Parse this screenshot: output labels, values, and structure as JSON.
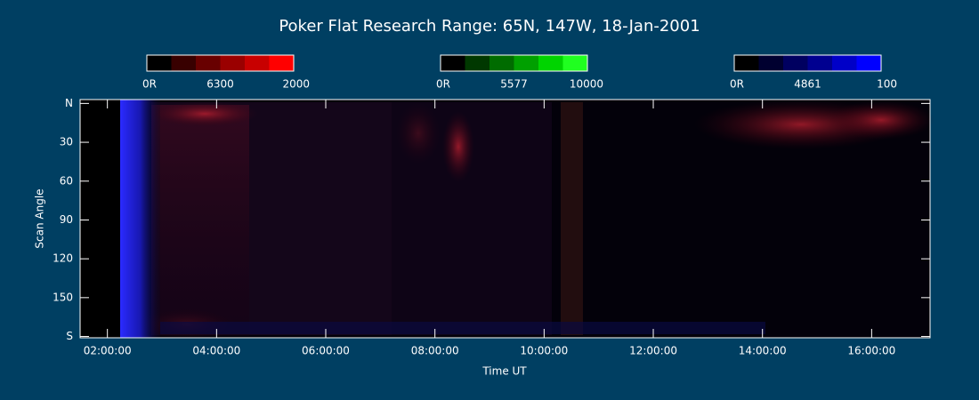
{
  "chart_data": {
    "type": "keogram",
    "title": "Poker Flat Research Range: 65N, 147W, 18-Jan-2001",
    "xlabel": "Time UT",
    "ylabel": "Scan Angle",
    "background": "#003f62",
    "xlim": [
      1.5,
      17.07
    ],
    "xticks": [
      {
        "value": 2,
        "label": "02:00:00"
      },
      {
        "value": 4,
        "label": "04:00:00"
      },
      {
        "value": 6,
        "label": "06:00:00"
      },
      {
        "value": 8,
        "label": "08:00:00"
      },
      {
        "value": 10,
        "label": "10:00:00"
      },
      {
        "value": 12,
        "label": "12:00:00"
      },
      {
        "value": 14,
        "label": "14:00:00"
      },
      {
        "value": 16,
        "label": "16:00:00"
      }
    ],
    "ylim": [
      -3,
      181
    ],
    "yticks": [
      {
        "value": 0,
        "label": "N"
      },
      30,
      60,
      90,
      120,
      150,
      {
        "value": 180,
        "label": "S"
      }
    ],
    "colorbars": [
      {
        "name": "6300",
        "min_label": "0R",
        "max": 2000,
        "colors": [
          "#000000",
          "#380000",
          "#680000",
          "#9a0000",
          "#c80000",
          "#ff0000"
        ]
      },
      {
        "name": "5577",
        "min_label": "0R",
        "max": 10000,
        "colors": [
          "#000000",
          "#003800",
          "#006c00",
          "#00a000",
          "#00d400",
          "#20ff20"
        ]
      },
      {
        "name": "4861",
        "min_label": "0R",
        "max": 100,
        "colors": [
          "#000000",
          "#000030",
          "#000060",
          "#000090",
          "#0000c8",
          "#0000ff"
        ]
      }
    ]
  }
}
